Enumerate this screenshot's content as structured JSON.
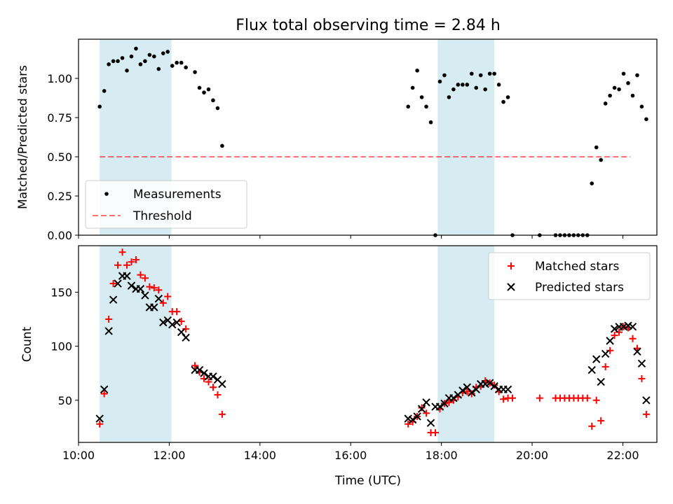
{
  "title": "Flux total observing time = 2.84 h",
  "colors": {
    "shade": "#add8e6",
    "measurements": "#000000",
    "threshold": "#ff0000",
    "matched": "#ff0000",
    "predicted": "#000000"
  },
  "chart_data": [
    {
      "type": "scatter",
      "ylabel": "Matched/Predicted stars",
      "xlim": [
        "10:00",
        "22:45"
      ],
      "ylim": [
        0,
        1.25
      ],
      "yticks": [
        "0.00",
        "0.25",
        "0.50",
        "0.75",
        "1.00"
      ],
      "shaded_intervals": [
        [
          "10:28",
          "12:03"
        ],
        [
          "17:55",
          "19:10"
        ]
      ],
      "legend_position": "lower left",
      "legend": [
        "Measurements",
        "Threshold"
      ],
      "threshold": {
        "value": 0.5,
        "x": [
          "10:28",
          "22:10"
        ],
        "name": "Threshold",
        "style": "dashed"
      },
      "series": [
        {
          "name": "Measurements",
          "points": [
            [
              "10:28",
              0.82
            ],
            [
              "10:34",
              0.92
            ],
            [
              "10:40",
              1.09
            ],
            [
              "10:46",
              1.11
            ],
            [
              "10:52",
              1.11
            ],
            [
              "10:58",
              1.13
            ],
            [
              "11:04",
              1.05
            ],
            [
              "11:10",
              1.14
            ],
            [
              "11:16",
              1.19
            ],
            [
              "11:22",
              1.09
            ],
            [
              "11:28",
              1.11
            ],
            [
              "11:34",
              1.15
            ],
            [
              "11:40",
              1.14
            ],
            [
              "11:46",
              1.06
            ],
            [
              "11:52",
              1.16
            ],
            [
              "11:58",
              1.17
            ],
            [
              "12:04",
              1.08
            ],
            [
              "12:10",
              1.1
            ],
            [
              "12:16",
              1.1
            ],
            [
              "12:22",
              1.07
            ],
            [
              "12:34",
              1.04
            ],
            [
              "12:40",
              0.94
            ],
            [
              "12:46",
              0.91
            ],
            [
              "12:52",
              0.93
            ],
            [
              "12:58",
              0.86
            ],
            [
              "13:04",
              0.81
            ],
            [
              "13:10",
              0.57
            ],
            [
              "17:16",
              0.82
            ],
            [
              "17:22",
              0.94
            ],
            [
              "17:28",
              1.05
            ],
            [
              "17:34",
              0.88
            ],
            [
              "17:40",
              0.82
            ],
            [
              "17:46",
              0.72
            ],
            [
              "17:52",
              0.0
            ],
            [
              "17:58",
              0.98
            ],
            [
              "18:04",
              1.02
            ],
            [
              "18:10",
              0.88
            ],
            [
              "18:16",
              0.93
            ],
            [
              "18:22",
              0.96
            ],
            [
              "18:28",
              0.96
            ],
            [
              "18:34",
              0.96
            ],
            [
              "18:40",
              1.03
            ],
            [
              "18:46",
              0.94
            ],
            [
              "18:52",
              1.02
            ],
            [
              "18:58",
              0.93
            ],
            [
              "19:04",
              1.03
            ],
            [
              "19:10",
              1.03
            ],
            [
              "19:16",
              0.96
            ],
            [
              "19:22",
              0.85
            ],
            [
              "19:28",
              0.88
            ],
            [
              "19:34",
              0.0
            ],
            [
              "20:10",
              0.0
            ],
            [
              "20:31",
              0.0
            ],
            [
              "20:37",
              0.0
            ],
            [
              "20:43",
              0.0
            ],
            [
              "20:49",
              0.0
            ],
            [
              "20:55",
              0.0
            ],
            [
              "21:01",
              0.0
            ],
            [
              "21:07",
              0.0
            ],
            [
              "21:13",
              0.0
            ],
            [
              "21:19",
              0.33
            ],
            [
              "21:25",
              0.56
            ],
            [
              "21:31",
              0.48
            ],
            [
              "21:37",
              0.84
            ],
            [
              "21:43",
              0.89
            ],
            [
              "21:49",
              0.94
            ],
            [
              "21:55",
              0.93
            ],
            [
              "22:01",
              1.03
            ],
            [
              "22:07",
              0.97
            ],
            [
              "22:13",
              0.89
            ],
            [
              "22:19",
              1.02
            ],
            [
              "22:25",
              0.82
            ],
            [
              "22:31",
              0.74
            ]
          ]
        }
      ]
    },
    {
      "type": "scatter",
      "xlabel": "Time (UTC)",
      "ylabel": "Count",
      "xlim": [
        "10:00",
        "22:45"
      ],
      "ylim": [
        11,
        193
      ],
      "xticks": [
        "10:00",
        "12:00",
        "14:00",
        "16:00",
        "18:00",
        "20:00",
        "22:00"
      ],
      "yticks": [
        "50",
        "100",
        "150"
      ],
      "shaded_intervals": [
        [
          "10:28",
          "12:03"
        ],
        [
          "17:55",
          "19:10"
        ]
      ],
      "legend_position": "upper right",
      "legend": [
        "Matched stars",
        "Predicted stars"
      ],
      "series": [
        {
          "name": "Matched stars",
          "marker": "+",
          "points": [
            [
              "10:28",
              28
            ],
            [
              "10:34",
              56
            ],
            [
              "10:40",
              125
            ],
            [
              "10:46",
              158
            ],
            [
              "10:52",
              175
            ],
            [
              "10:58",
              187
            ],
            [
              "11:04",
              175
            ],
            [
              "11:10",
              178
            ],
            [
              "11:16",
              180
            ],
            [
              "11:22",
              166
            ],
            [
              "11:28",
              163
            ],
            [
              "11:34",
              155
            ],
            [
              "11:40",
              154
            ],
            [
              "11:46",
              152
            ],
            [
              "11:52",
              140
            ],
            [
              "11:58",
              146
            ],
            [
              "12:04",
              132
            ],
            [
              "12:10",
              132
            ],
            [
              "12:16",
              123
            ],
            [
              "12:22",
              116
            ],
            [
              "12:34",
              82
            ],
            [
              "12:40",
              76
            ],
            [
              "12:46",
              70
            ],
            [
              "12:52",
              67
            ],
            [
              "12:58",
              62
            ],
            [
              "13:04",
              55
            ],
            [
              "13:10",
              37
            ],
            [
              "17:16",
              28
            ],
            [
              "17:22",
              30
            ],
            [
              "17:28",
              35
            ],
            [
              "17:34",
              43
            ],
            [
              "17:40",
              38
            ],
            [
              "17:46",
              20
            ],
            [
              "17:52",
              20
            ],
            [
              "17:58",
              42
            ],
            [
              "18:04",
              47
            ],
            [
              "18:10",
              48
            ],
            [
              "18:16",
              50
            ],
            [
              "18:22",
              53
            ],
            [
              "18:28",
              57
            ],
            [
              "18:34",
              58
            ],
            [
              "18:40",
              56
            ],
            [
              "18:46",
              62
            ],
            [
              "18:52",
              63
            ],
            [
              "18:58",
              68
            ],
            [
              "19:04",
              66
            ],
            [
              "19:10",
              64
            ],
            [
              "19:16",
              58
            ],
            [
              "19:22",
              51
            ],
            [
              "19:28",
              52
            ],
            [
              "19:34",
              52
            ],
            [
              "20:10",
              52
            ],
            [
              "20:31",
              52
            ],
            [
              "20:37",
              52
            ],
            [
              "20:43",
              52
            ],
            [
              "20:49",
              52
            ],
            [
              "20:55",
              52
            ],
            [
              "21:01",
              52
            ],
            [
              "21:07",
              52
            ],
            [
              "21:13",
              52
            ],
            [
              "21:19",
              26
            ],
            [
              "21:25",
              50
            ],
            [
              "21:31",
              31
            ],
            [
              "21:37",
              81
            ],
            [
              "21:43",
              96
            ],
            [
              "21:49",
              110
            ],
            [
              "21:55",
              113
            ],
            [
              "22:01",
              118
            ],
            [
              "22:07",
              117
            ],
            [
              "22:13",
              107
            ],
            [
              "22:19",
              98
            ],
            [
              "22:25",
              70
            ],
            [
              "22:31",
              37
            ]
          ]
        },
        {
          "name": "Predicted stars",
          "marker": "x",
          "points": [
            [
              "10:28",
              33
            ],
            [
              "10:34",
              60
            ],
            [
              "10:40",
              114
            ],
            [
              "10:46",
              143
            ],
            [
              "10:52",
              158
            ],
            [
              "10:58",
              165
            ],
            [
              "11:04",
              165
            ],
            [
              "11:10",
              156
            ],
            [
              "11:16",
              153
            ],
            [
              "11:22",
              153
            ],
            [
              "11:28",
              147
            ],
            [
              "11:34",
              136
            ],
            [
              "11:40",
              136
            ],
            [
              "11:46",
              144
            ],
            [
              "11:52",
              122
            ],
            [
              "11:58",
              124
            ],
            [
              "12:04",
              120
            ],
            [
              "12:10",
              122
            ],
            [
              "12:16",
              113
            ],
            [
              "12:22",
              108
            ],
            [
              "12:34",
              78
            ],
            [
              "12:40",
              78
            ],
            [
              "12:46",
              75
            ],
            [
              "12:52",
              72
            ],
            [
              "12:58",
              72
            ],
            [
              "13:04",
              69
            ],
            [
              "13:10",
              65
            ],
            [
              "17:16",
              33
            ],
            [
              "17:22",
              32
            ],
            [
              "17:28",
              35
            ],
            [
              "17:34",
              42
            ],
            [
              "17:40",
              48
            ],
            [
              "17:46",
              29
            ],
            [
              "17:52",
              44
            ],
            [
              "17:58",
              44
            ],
            [
              "18:04",
              47
            ],
            [
              "18:10",
              52
            ],
            [
              "18:16",
              52
            ],
            [
              "18:22",
              55
            ],
            [
              "18:28",
              59
            ],
            [
              "18:34",
              62
            ],
            [
              "18:40",
              57
            ],
            [
              "18:46",
              60
            ],
            [
              "18:52",
              65
            ],
            [
              "18:58",
              65
            ],
            [
              "19:04",
              66
            ],
            [
              "19:10",
              63
            ],
            [
              "19:16",
              60
            ],
            [
              "19:22",
              60
            ],
            [
              "19:28",
              60
            ],
            [
              "21:19",
              78
            ],
            [
              "21:25",
              88
            ],
            [
              "21:31",
              67
            ],
            [
              "21:37",
              93
            ],
            [
              "21:43",
              105
            ],
            [
              "21:49",
              116
            ],
            [
              "21:55",
              118
            ],
            [
              "22:01",
              118
            ],
            [
              "22:07",
              119
            ],
            [
              "22:13",
              118
            ],
            [
              "22:19",
              95
            ],
            [
              "22:25",
              84
            ],
            [
              "22:31",
              50
            ]
          ]
        }
      ]
    }
  ]
}
